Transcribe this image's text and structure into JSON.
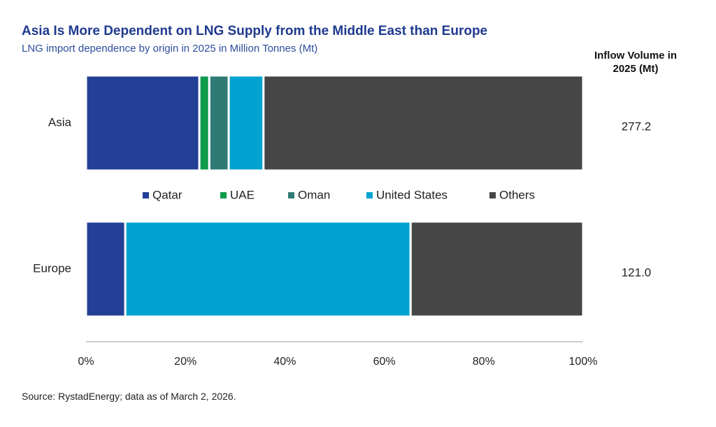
{
  "chart_data": {
    "type": "bar",
    "orientation": "horizontal",
    "stacked": "100%",
    "title": "Asia Is More Dependent on LNG Supply from the Middle East than Europe",
    "subtitle": "LNG import dependence by origin in 2025 in Million Tonnes (Mt)",
    "categories": [
      "Asia",
      "Europe"
    ],
    "series": [
      {
        "name": "Qatar",
        "color": "#233f96",
        "values": [
          22.8,
          7.9
        ]
      },
      {
        "name": "UAE",
        "color": "#0e9a4b",
        "values": [
          2.0,
          0.0
        ]
      },
      {
        "name": "Oman",
        "color": "#307a76",
        "values": [
          3.9,
          0.0
        ]
      },
      {
        "name": "United States",
        "color": "#00a3cf",
        "values": [
          7.0,
          57.4
        ]
      },
      {
        "name": "Others",
        "color": "#464646",
        "values": [
          64.3,
          34.7
        ]
      }
    ],
    "xlim": [
      0,
      100
    ],
    "xticks": [
      "0%",
      "20%",
      "40%",
      "60%",
      "80%",
      "100%"
    ],
    "xtick_values": [
      0,
      20,
      40,
      60,
      80,
      100
    ],
    "inflow_header": "Inflow Volume in 2025 (Mt)",
    "inflow_values": [
      "277.2",
      "121.0"
    ],
    "legend_position": "between-bars",
    "grid": false
  },
  "source": "Source: RystadEnergy; data as of March 2, 2026."
}
